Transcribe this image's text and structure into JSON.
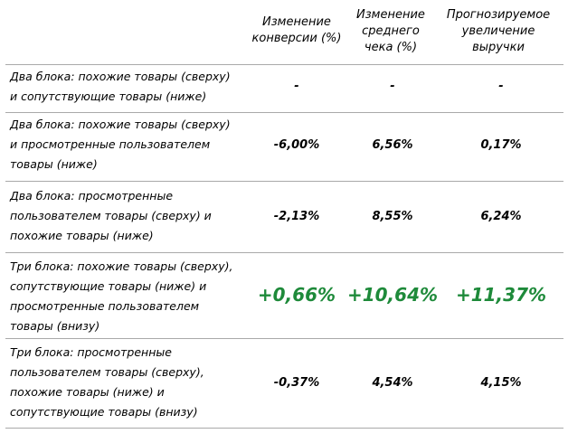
{
  "header": {
    "col1": "Изменение\nконверсии (%)",
    "col2": "Изменение\nсреднего\nчека (%)",
    "col3": "Прогнозируемое\nувеличение\nвыручки"
  },
  "rows": [
    {
      "description": "Два блока: похожие товары (сверху)\nи сопутствующие товары (ниже)",
      "conversion": "-",
      "avg_check": "-",
      "revenue": "-"
    },
    {
      "description": "Два блока: похожие товары (сверху)\nи просмотренные пользователем\nтовары (ниже)",
      "conversion": "-6,00%",
      "avg_check": "6,56%",
      "revenue": "0,17%"
    },
    {
      "description": "Два блока: просмотренные\nпользователем товары (сверху) и\nпохожие товары (ниже)",
      "conversion": "-2,13%",
      "avg_check": "8,55%",
      "revenue": "6,24%"
    },
    {
      "description": "Три блока: похожие товары (сверху),\nсопутствующие товары (ниже) и\nпросмотренные пользователем\nтовары (внизу)",
      "conversion": "+0,66%",
      "avg_check": "+10,64%",
      "revenue": "+11,37%"
    },
    {
      "description": "Три блока: просмотренные\nпользователем товары (сверху),\nпохожие товары (ниже) и\nсопутствующие товары (внизу)",
      "conversion": "-0,37%",
      "avg_check": "4,54%",
      "revenue": "4,15%"
    }
  ],
  "colors": {
    "highlight": "#1e8a3a",
    "divider": "#a9a9a9"
  }
}
